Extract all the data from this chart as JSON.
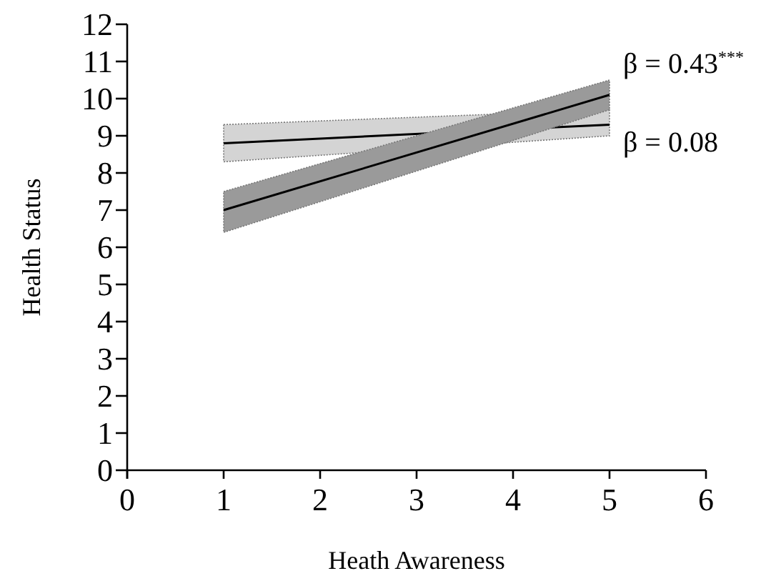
{
  "chart_data": {
    "type": "line",
    "xlabel": "Heath Awareness",
    "ylabel": "Health Status",
    "x": [
      1,
      5
    ],
    "xlim": [
      0,
      6
    ],
    "xticks": [
      0,
      1,
      2,
      3,
      4,
      5,
      6
    ],
    "ylim": [
      0,
      12
    ],
    "yticks": [
      0,
      1,
      2,
      3,
      4,
      5,
      6,
      7,
      8,
      9,
      10,
      11,
      12
    ],
    "grid": false,
    "marker": "none",
    "line_style": "solid",
    "series": [
      {
        "color": "#000000",
        "values": [
          8.8,
          9.3
        ],
        "lower": [
          8.3,
          9.0
        ],
        "upper": [
          9.3,
          9.7
        ]
      },
      {
        "color": "#000000",
        "values": [
          7.0,
          10.1
        ],
        "lower": [
          6.4,
          9.7
        ],
        "upper": [
          7.5,
          10.5
        ]
      }
    ],
    "annotations": [
      "β = 0.43$^{***}$",
      "β = 0.08"
    ]
  }
}
